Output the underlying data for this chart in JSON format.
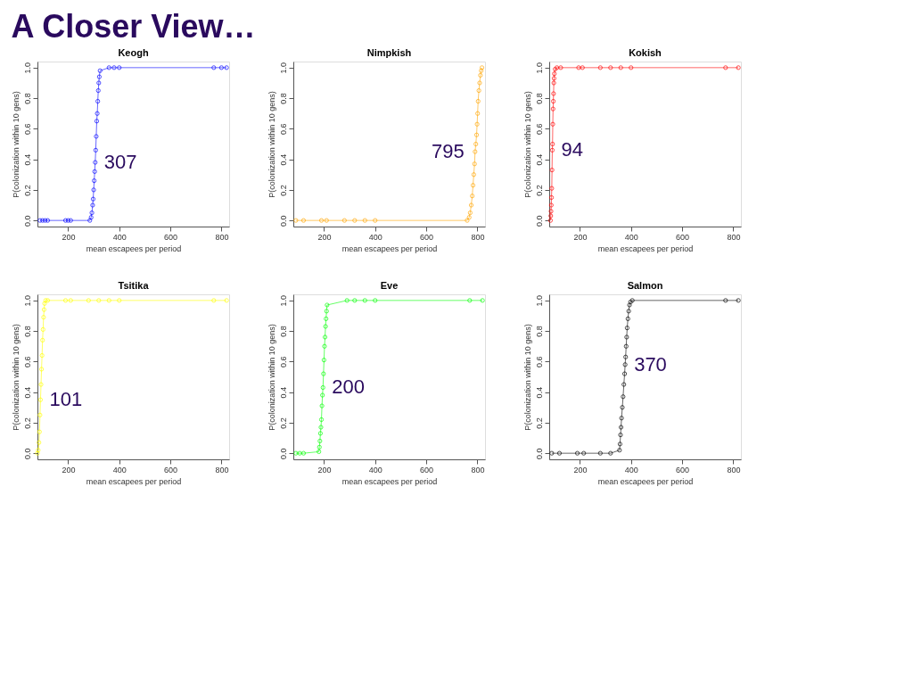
{
  "chart_data": [
    {
      "type": "line",
      "title": "Keogh",
      "xlabel": "mean escapees per period",
      "ylabel": "P(colonization within 10 gens)",
      "marker": "circle",
      "grid": false,
      "xlim": [
        80,
        830
      ],
      "ylim": [
        -0.04,
        1.04
      ],
      "xticks": [
        200,
        400,
        600,
        800
      ],
      "yticks": [
        {
          "value": 0,
          "label": "0.0"
        },
        {
          "value": 0.2,
          "label": "0.2"
        },
        {
          "value": 0.4,
          "label": "0.4"
        },
        {
          "value": 0.6,
          "label": "0.6"
        },
        {
          "value": 0.8,
          "label": "0.8"
        },
        {
          "value": 1,
          "label": "1.0"
        }
      ],
      "annotations": [
        "A Closer View…",
        {
          "text": "307",
          "x": 306,
          "y": 0.38
        }
      ],
      "x": [
        90,
        100,
        110,
        120,
        190,
        200,
        210,
        285,
        290,
        293,
        296,
        298,
        300,
        302,
        304,
        306,
        308,
        310,
        312,
        314,
        316,
        318,
        320,
        322,
        325,
        360,
        380,
        400,
        770,
        800,
        820
      ],
      "series": [
        {
          "color": "#0000ff",
          "values": [
            0,
            0,
            0,
            0,
            0,
            0,
            0,
            0,
            0.02,
            0.05,
            0.1,
            0.14,
            0.2,
            0.26,
            0.32,
            0.38,
            0.46,
            0.55,
            0.65,
            0.7,
            0.78,
            0.85,
            0.9,
            0.94,
            0.98,
            1,
            1,
            1,
            1,
            1,
            1
          ]
        }
      ]
    },
    {
      "type": "line",
      "title": "Nimpkish",
      "xlabel": "mean escapees per period",
      "ylabel": "P(colonization within 10 gens)",
      "marker": "circle",
      "grid": false,
      "xlim": [
        80,
        830
      ],
      "ylim": [
        -0.04,
        1.04
      ],
      "xticks": [
        200,
        400,
        600,
        800
      ],
      "yticks": [
        {
          "value": 0,
          "label": "0.0"
        },
        {
          "value": 0.2,
          "label": "0.2"
        },
        {
          "value": 0.4,
          "label": "0.4"
        },
        {
          "value": 0.6,
          "label": "0.6"
        },
        {
          "value": 0.8,
          "label": "0.8"
        },
        {
          "value": 1,
          "label": "1.0"
        }
      ],
      "annotations": [
        {
          "text": "795",
          "x": 791,
          "y": 0.45
        }
      ],
      "x": [
        90,
        120,
        190,
        210,
        280,
        320,
        360,
        400,
        760,
        768,
        772,
        776,
        780,
        783,
        786,
        789,
        791,
        794,
        797,
        799,
        801,
        803,
        806,
        809,
        812,
        815,
        818
      ],
      "series": [
        {
          "color": "#ffa500",
          "values": [
            0,
            0,
            0,
            0,
            0,
            0,
            0,
            0,
            0,
            0.02,
            0.05,
            0.1,
            0.16,
            0.23,
            0.3,
            0.37,
            0.45,
            0.5,
            0.56,
            0.63,
            0.7,
            0.78,
            0.85,
            0.9,
            0.95,
            0.98,
            1
          ]
        }
      ]
    },
    {
      "type": "line",
      "title": "Kokish",
      "xlabel": "mean escapees per period",
      "ylabel": "P(colonization within 10 gens)",
      "marker": "circle",
      "grid": false,
      "xlim": [
        80,
        830
      ],
      "ylim": [
        -0.04,
        1.04
      ],
      "xticks": [
        200,
        400,
        600,
        800
      ],
      "yticks": [
        {
          "value": 0,
          "label": "0.0"
        },
        {
          "value": 0.2,
          "label": "0.2"
        },
        {
          "value": 0.4,
          "label": "0.4"
        },
        {
          "value": 0.6,
          "label": "0.6"
        },
        {
          "value": 0.8,
          "label": "0.8"
        },
        {
          "value": 1,
          "label": "1.0"
        }
      ],
      "annotations": [
        {
          "text": "94",
          "x": 92,
          "y": 0.46
        }
      ],
      "x": [
        85,
        86,
        87,
        88,
        89,
        90,
        91,
        92,
        93,
        94,
        95,
        96,
        97,
        98,
        99,
        100,
        103,
        110,
        125,
        195,
        210,
        280,
        320,
        360,
        400,
        770,
        820
      ],
      "series": [
        {
          "color": "#ff0000",
          "values": [
            0,
            0.03,
            0.06,
            0.1,
            0.15,
            0.21,
            0.33,
            0.46,
            0.5,
            0.63,
            0.73,
            0.78,
            0.83,
            0.9,
            0.93,
            0.96,
            0.99,
            1,
            1,
            1,
            1,
            1,
            1,
            1,
            1,
            1,
            1
          ]
        }
      ]
    },
    {
      "type": "line",
      "title": "Tsitika",
      "xlabel": "mean escapees per period",
      "ylabel": "P(colonization within 10 gens)",
      "marker": "circle",
      "grid": false,
      "xlim": [
        80,
        830
      ],
      "ylim": [
        -0.04,
        1.04
      ],
      "xticks": [
        200,
        400,
        600,
        800
      ],
      "yticks": [
        {
          "value": 0,
          "label": "0.0"
        },
        {
          "value": 0.2,
          "label": "0.2"
        },
        {
          "value": 0.4,
          "label": "0.4"
        },
        {
          "value": 0.6,
          "label": "0.6"
        },
        {
          "value": 0.8,
          "label": "0.8"
        },
        {
          "value": 1,
          "label": "1.0"
        }
      ],
      "annotations": [
        {
          "text": "101",
          "x": 92,
          "y": 0.35
        }
      ],
      "x": [
        80,
        83,
        86,
        88,
        90,
        92,
        94,
        96,
        98,
        100,
        102,
        104,
        106,
        108,
        112,
        120,
        190,
        210,
        280,
        320,
        360,
        400,
        770,
        820
      ],
      "series": [
        {
          "color": "#ffff00",
          "values": [
            0,
            0.02,
            0.07,
            0.14,
            0.25,
            0.35,
            0.45,
            0.55,
            0.64,
            0.74,
            0.81,
            0.89,
            0.94,
            0.98,
            1,
            1,
            1,
            1,
            1,
            1,
            1,
            1,
            1,
            1
          ]
        }
      ]
    },
    {
      "type": "line",
      "title": "Eve",
      "xlabel": "mean escapees per period",
      "ylabel": "P(colonization within 10 gens)",
      "marker": "circle",
      "grid": false,
      "xlim": [
        80,
        830
      ],
      "ylim": [
        -0.04,
        1.04
      ],
      "xticks": [
        200,
        400,
        600,
        800
      ],
      "yticks": [
        {
          "value": 0,
          "label": "0.0"
        },
        {
          "value": 0.2,
          "label": "0.2"
        },
        {
          "value": 0.4,
          "label": "0.4"
        },
        {
          "value": 0.6,
          "label": "0.6"
        },
        {
          "value": 0.8,
          "label": "0.8"
        },
        {
          "value": 1,
          "label": "1.0"
        }
      ],
      "annotations": [
        {
          "text": "200",
          "x": 196,
          "y": 0.43
        }
      ],
      "x": [
        90,
        105,
        120,
        180,
        182,
        184,
        186,
        188,
        190,
        192,
        194,
        196,
        198,
        200,
        202,
        204,
        206,
        208,
        210,
        212,
        290,
        320,
        360,
        400,
        770,
        820
      ],
      "series": [
        {
          "color": "#00ff00",
          "values": [
            0,
            0,
            0,
            0.01,
            0.04,
            0.08,
            0.13,
            0.17,
            0.22,
            0.31,
            0.38,
            0.43,
            0.52,
            0.61,
            0.7,
            0.76,
            0.83,
            0.88,
            0.93,
            0.97,
            1,
            1,
            1,
            1,
            1,
            1
          ]
        }
      ]
    },
    {
      "type": "line",
      "title": "Salmon",
      "xlabel": "mean escapees per period",
      "ylabel": "P(colonization within 10 gens)",
      "marker": "circle",
      "grid": false,
      "xlim": [
        80,
        830
      ],
      "ylim": [
        -0.04,
        1.04
      ],
      "xticks": [
        200,
        400,
        600,
        800
      ],
      "yticks": [
        {
          "value": 0,
          "label": "0.0"
        },
        {
          "value": 0.2,
          "label": "0.2"
        },
        {
          "value": 0.4,
          "label": "0.4"
        },
        {
          "value": 0.6,
          "label": "0.6"
        },
        {
          "value": 0.8,
          "label": "0.8"
        },
        {
          "value": 1,
          "label": "1.0"
        }
      ],
      "annotations": [
        {
          "text": "370",
          "x": 377,
          "y": 0.58
        }
      ],
      "x": [
        90,
        120,
        190,
        215,
        280,
        320,
        355,
        357,
        359,
        361,
        363,
        366,
        369,
        372,
        375,
        377,
        379,
        381,
        383,
        385,
        388,
        391,
        394,
        398,
        405,
        770,
        820
      ],
      "series": [
        {
          "color": "#000000",
          "values": [
            0,
            0,
            0,
            0,
            0,
            0,
            0.02,
            0.06,
            0.12,
            0.17,
            0.23,
            0.3,
            0.37,
            0.45,
            0.52,
            0.58,
            0.63,
            0.7,
            0.76,
            0.82,
            0.88,
            0.93,
            0.97,
            0.99,
            1,
            1,
            1
          ]
        }
      ]
    }
  ]
}
